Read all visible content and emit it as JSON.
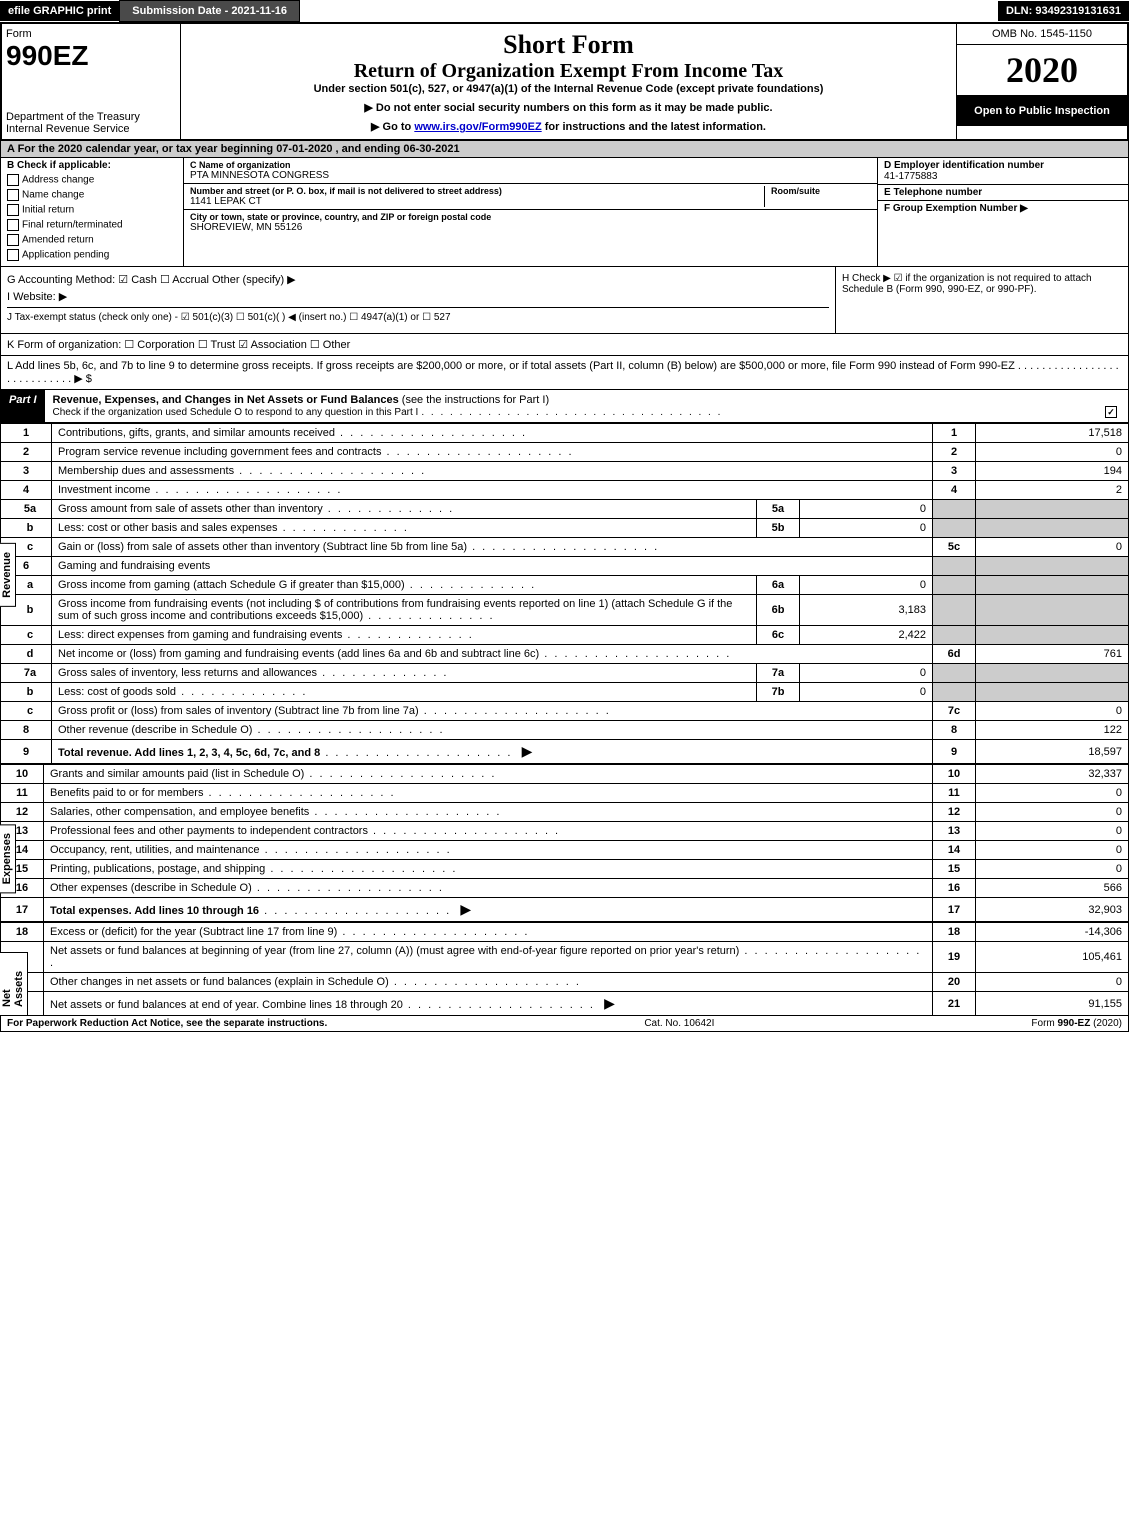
{
  "top": {
    "efile": "efile GRAPHIC print",
    "submission": "Submission Date - 2021-11-16",
    "dln": "DLN: 93492319131631"
  },
  "header": {
    "form_label": "Form",
    "form_number": "990EZ",
    "dept": "Department of the Treasury\nInternal Revenue Service",
    "title1": "Short Form",
    "title2": "Return of Organization Exempt From Income Tax",
    "subtitle": "Under section 501(c), 527, or 4947(a)(1) of the Internal Revenue Code (except private foundations)",
    "arrow1": "▶ Do not enter social security numbers on this form as it may be made public.",
    "arrow2_pre": "▶ Go to ",
    "arrow2_link": "www.irs.gov/Form990EZ",
    "arrow2_post": " for instructions and the latest information.",
    "omb": "OMB No. 1545-1150",
    "year": "2020",
    "open": "Open to Public Inspection"
  },
  "lineA": "A For the 2020 calendar year, or tax year beginning 07-01-2020 , and ending 06-30-2021",
  "B": {
    "title": "B Check if applicable:",
    "opts": [
      "Address change",
      "Name change",
      "Initial return",
      "Final return/terminated",
      "Amended return",
      "Application pending"
    ]
  },
  "C": {
    "name_label": "C Name of organization",
    "name": "PTA MINNESOTA CONGRESS",
    "street_label": "Number and street (or P. O. box, if mail is not delivered to street address)",
    "room_label": "Room/suite",
    "street": "1141 LEPAK CT",
    "city_label": "City or town, state or province, country, and ZIP or foreign postal code",
    "city": "SHOREVIEW, MN  55126"
  },
  "D": {
    "label": "D Employer identification number",
    "value": "41-1775883"
  },
  "E": {
    "label": "E Telephone number",
    "value": ""
  },
  "F": {
    "label": "F Group Exemption Number  ▶",
    "value": ""
  },
  "G": "G Accounting Method:  ☑ Cash  ☐ Accrual  Other (specify) ▶",
  "H": "H  Check ▶ ☑ if the organization is not required to attach Schedule B (Form 990, 990-EZ, or 990-PF).",
  "I": "I Website: ▶",
  "J": "J Tax-exempt status (check only one) - ☑ 501(c)(3) ☐ 501(c)(  ) ◀ (insert no.) ☐ 4947(a)(1) or ☐ 527",
  "K": "K Form of organization:  ☐ Corporation  ☐ Trust  ☑ Association  ☐ Other",
  "L": "L Add lines 5b, 6c, and 7b to line 9 to determine gross receipts. If gross receipts are $200,000 or more, or if total assets (Part II, column (B) below) are $500,000 or more, file Form 990 instead of Form 990-EZ  .  .  .  .  .  .  .  .  .  .  .  .  .  .  .  .  .  .  .  .  .  .  .  .  .  .  .  .  ▶ $",
  "partI": {
    "label": "Part I",
    "title": "Revenue, Expenses, and Changes in Net Assets or Fund Balances",
    "note": " (see the instructions for Part I)",
    "check": "Check if the organization used Schedule O to respond to any question in this Part I"
  },
  "revenue": [
    {
      "n": "1",
      "d": "Contributions, gifts, grants, and similar amounts received",
      "r": "1",
      "v": "17,518"
    },
    {
      "n": "2",
      "d": "Program service revenue including government fees and contracts",
      "r": "2",
      "v": "0"
    },
    {
      "n": "3",
      "d": "Membership dues and assessments",
      "r": "3",
      "v": "194"
    },
    {
      "n": "4",
      "d": "Investment income",
      "r": "4",
      "v": "2"
    },
    {
      "n": "5a",
      "d": "Gross amount from sale of assets other than inventory",
      "ir": "5a",
      "iv": "0"
    },
    {
      "n": "b",
      "d": "Less: cost or other basis and sales expenses",
      "ir": "5b",
      "iv": "0"
    },
    {
      "n": "c",
      "d": "Gain or (loss) from sale of assets other than inventory (Subtract line 5b from line 5a)",
      "r": "5c",
      "v": "0"
    },
    {
      "n": "6",
      "d": "Gaming and fundraising events"
    },
    {
      "n": "a",
      "d": "Gross income from gaming (attach Schedule G if greater than $15,000)",
      "ir": "6a",
      "iv": "0"
    },
    {
      "n": "b",
      "d": "Gross income from fundraising events (not including $             of contributions from fundraising events reported on line 1) (attach Schedule G if the sum of such gross income and contributions exceeds $15,000)",
      "ir": "6b",
      "iv": "3,183"
    },
    {
      "n": "c",
      "d": "Less: direct expenses from gaming and fundraising events",
      "ir": "6c",
      "iv": "2,422"
    },
    {
      "n": "d",
      "d": "Net income or (loss) from gaming and fundraising events (add lines 6a and 6b and subtract line 6c)",
      "r": "6d",
      "v": "761"
    },
    {
      "n": "7a",
      "d": "Gross sales of inventory, less returns and allowances",
      "ir": "7a",
      "iv": "0"
    },
    {
      "n": "b",
      "d": "Less: cost of goods sold",
      "ir": "7b",
      "iv": "0"
    },
    {
      "n": "c",
      "d": "Gross profit or (loss) from sales of inventory (Subtract line 7b from line 7a)",
      "r": "7c",
      "v": "0"
    },
    {
      "n": "8",
      "d": "Other revenue (describe in Schedule O)",
      "r": "8",
      "v": "122"
    },
    {
      "n": "9",
      "d": "Total revenue. Add lines 1, 2, 3, 4, 5c, 6d, 7c, and 8",
      "r": "9",
      "v": "18,597",
      "bold": true,
      "arrow": true
    }
  ],
  "expenses": [
    {
      "n": "10",
      "d": "Grants and similar amounts paid (list in Schedule O)",
      "r": "10",
      "v": "32,337"
    },
    {
      "n": "11",
      "d": "Benefits paid to or for members",
      "r": "11",
      "v": "0"
    },
    {
      "n": "12",
      "d": "Salaries, other compensation, and employee benefits",
      "r": "12",
      "v": "0"
    },
    {
      "n": "13",
      "d": "Professional fees and other payments to independent contractors",
      "r": "13",
      "v": "0"
    },
    {
      "n": "14",
      "d": "Occupancy, rent, utilities, and maintenance",
      "r": "14",
      "v": "0"
    },
    {
      "n": "15",
      "d": "Printing, publications, postage, and shipping",
      "r": "15",
      "v": "0"
    },
    {
      "n": "16",
      "d": "Other expenses (describe in Schedule O)",
      "r": "16",
      "v": "566"
    },
    {
      "n": "17",
      "d": "Total expenses. Add lines 10 through 16",
      "r": "17",
      "v": "32,903",
      "bold": true,
      "arrow": true
    }
  ],
  "netassets": [
    {
      "n": "18",
      "d": "Excess or (deficit) for the year (Subtract line 17 from line 9)",
      "r": "18",
      "v": "-14,306"
    },
    {
      "n": "19",
      "d": "Net assets or fund balances at beginning of year (from line 27, column (A)) (must agree with end-of-year figure reported on prior year's return)",
      "r": "19",
      "v": "105,461"
    },
    {
      "n": "20",
      "d": "Other changes in net assets or fund balances (explain in Schedule O)",
      "r": "20",
      "v": "0"
    },
    {
      "n": "21",
      "d": "Net assets or fund balances at end of year. Combine lines 18 through 20",
      "r": "21",
      "v": "91,155",
      "arrow": true
    }
  ],
  "sideLabels": {
    "rev": "Revenue",
    "exp": "Expenses",
    "net": "Net Assets"
  },
  "footer": {
    "left": "For Paperwork Reduction Act Notice, see the separate instructions.",
    "center": "Cat. No. 10642I",
    "right": "Form 990-EZ (2020)"
  }
}
